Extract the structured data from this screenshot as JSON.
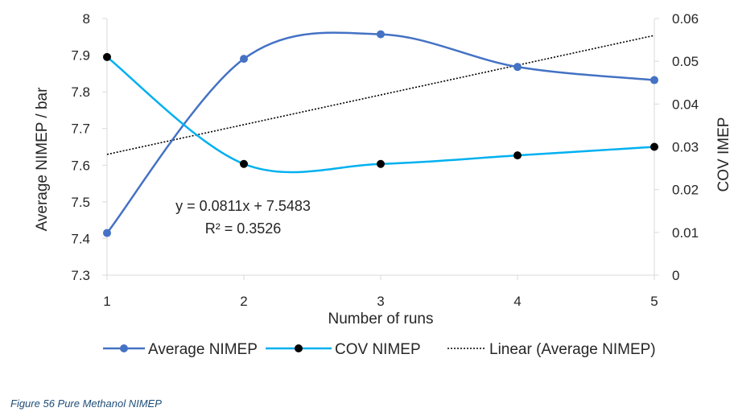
{
  "chart_data": {
    "type": "line",
    "x": [
      1,
      2,
      3,
      4,
      5
    ],
    "xlabel": "Number of runs",
    "ylabel": "Average NIMEP / bar",
    "y2label": "COV IMEP",
    "ylim": [
      7.3,
      8.0
    ],
    "y_ticks": [
      "7.3",
      "7.4",
      "7.5",
      "7.6",
      "7.7",
      "7.8",
      "7.9",
      "8"
    ],
    "y2lim": [
      0,
      0.06
    ],
    "y2_ticks": [
      "0",
      "0.01",
      "0.02",
      "0.03",
      "0.04",
      "0.05",
      "0.06"
    ],
    "x_ticks": [
      "1",
      "2",
      "3",
      "4",
      "5"
    ],
    "series": [
      {
        "name": "Average NIMEP",
        "axis": "left",
        "values": [
          7.415,
          7.89,
          7.957,
          7.868,
          7.832
        ],
        "color": "#4472c4",
        "smooth": true
      },
      {
        "name": "COV NIMEP",
        "axis": "right",
        "values": [
          0.051,
          0.026,
          0.026,
          0.028,
          0.03
        ],
        "color": "#00b0f0",
        "smooth": true
      },
      {
        "name": "Linear (Average NIMEP)",
        "axis": "left",
        "trendline": {
          "slope": 0.0811,
          "intercept": 7.5483
        },
        "color": "#000000",
        "dashed": true
      }
    ],
    "annotations": [
      "y = 0.0811x + 7.5483",
      "R² = 0.3526"
    ],
    "legend_position": "bottom",
    "grid": false
  },
  "caption": "Figure 56 Pure Methanol NIMEP"
}
